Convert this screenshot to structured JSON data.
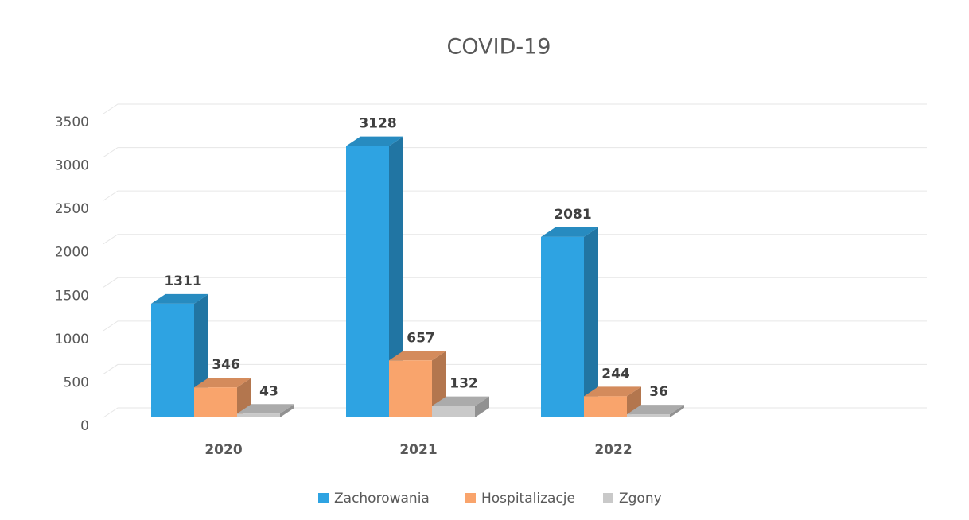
{
  "chart_data": {
    "type": "bar3d",
    "title": "COVID-19",
    "categories": [
      "2020",
      "2021",
      "2022"
    ],
    "series": [
      {
        "name": "Zachorowania",
        "color": "#2ea3e2",
        "values": [
          1311,
          3128,
          2081
        ]
      },
      {
        "name": "Hospitalizacje",
        "color": "#f9a46c",
        "values": [
          346,
          657,
          244
        ]
      },
      {
        "name": "Zgony",
        "color": "#c9c9c9",
        "values": [
          43,
          132,
          36
        ]
      }
    ],
    "ylim": [
      0,
      3500
    ],
    "yticks": [
      0,
      500,
      1000,
      1500,
      2000,
      2500,
      3000,
      3500
    ],
    "grid": true,
    "legend": "bottom"
  }
}
